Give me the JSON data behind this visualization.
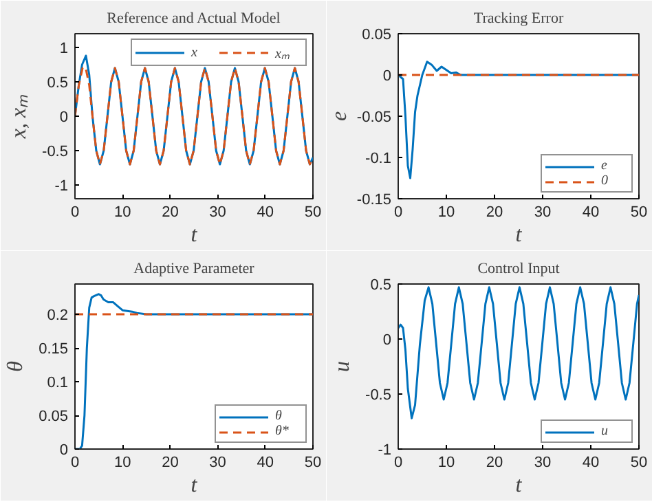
{
  "chart_data": [
    {
      "type": "line",
      "title": "Reference and Actual Model",
      "xlabel": "t",
      "ylabel": "x, xₘ",
      "xlim": [
        0,
        50
      ],
      "ylim": [
        -1.2,
        1.2
      ],
      "xticks": [
        0,
        10,
        20,
        30,
        40,
        50
      ],
      "yticks": [
        -1,
        -0.5,
        0,
        0.5,
        1
      ],
      "grid": false,
      "legend": "top right",
      "series": [
        {
          "name": "x",
          "color": "#0072bd",
          "line_style": "solid",
          "x": [
            0,
            0.8,
            1.5,
            2.3,
            3.0,
            3.68,
            4.47,
            5.25,
            6.04,
            6.83,
            7.61,
            8.4,
            9.19,
            9.98,
            10.76,
            11.55,
            12.34,
            13.13,
            13.91,
            14.7,
            15.49,
            16.28,
            17.06,
            17.85,
            18.64,
            19.43,
            20.21,
            21.0,
            21.79,
            22.58,
            23.36,
            24.15,
            24.94,
            25.73,
            26.51,
            27.3,
            28.09,
            28.88,
            29.66,
            30.45,
            31.24,
            32.03,
            32.81,
            33.6,
            34.39,
            35.18,
            35.96,
            36.75,
            37.54,
            38.33,
            39.11,
            39.9,
            40.69,
            41.48,
            42.26,
            43.05,
            43.84,
            44.63,
            45.41,
            46.2,
            46.99,
            47.78,
            48.56,
            49.35,
            50
          ],
          "values": [
            0,
            0.45,
            0.75,
            0.88,
            0.6,
            0,
            -0.5,
            -0.7,
            -0.5,
            0,
            0.5,
            0.7,
            0.5,
            0,
            -0.5,
            -0.7,
            -0.5,
            0,
            0.5,
            0.7,
            0.5,
            0,
            -0.5,
            -0.7,
            -0.5,
            0,
            0.5,
            0.7,
            0.5,
            0,
            -0.5,
            -0.7,
            -0.5,
            0,
            0.5,
            0.7,
            0.5,
            0,
            -0.5,
            -0.7,
            -0.5,
            0,
            0.5,
            0.7,
            0.5,
            0,
            -0.5,
            -0.7,
            -0.5,
            0,
            0.5,
            0.7,
            0.5,
            0,
            -0.5,
            -0.7,
            -0.5,
            0,
            0.5,
            0.7,
            0.5,
            0,
            -0.5,
            -0.7,
            -0.6
          ]
        },
        {
          "name": "xₘ",
          "color": "#d95319",
          "line_style": "dashed",
          "x": [
            0,
            0.8,
            1.6,
            2.2,
            3.0,
            3.68,
            4.47,
            5.25,
            6.04,
            6.83,
            7.61,
            8.4,
            9.19,
            9.98,
            10.76,
            11.55,
            12.34,
            13.13,
            13.91,
            14.7,
            15.49,
            16.28,
            17.06,
            17.85,
            18.64,
            19.43,
            20.21,
            21.0,
            21.79,
            22.58,
            23.36,
            24.15,
            24.94,
            25.73,
            26.51,
            27.3,
            28.09,
            28.88,
            29.66,
            30.45,
            31.24,
            32.03,
            32.81,
            33.6,
            34.39,
            35.18,
            35.96,
            36.75,
            37.54,
            38.33,
            39.11,
            39.9,
            40.69,
            41.48,
            42.26,
            43.05,
            43.84,
            44.63,
            45.41,
            46.2,
            46.99,
            47.78,
            48.56,
            49.35,
            50
          ],
          "values": [
            0,
            0.45,
            0.7,
            0.72,
            0.45,
            0,
            -0.5,
            -0.7,
            -0.5,
            0,
            0.5,
            0.7,
            0.5,
            0,
            -0.5,
            -0.7,
            -0.5,
            0,
            0.5,
            0.7,
            0.5,
            0,
            -0.5,
            -0.7,
            -0.5,
            0,
            0.5,
            0.7,
            0.5,
            0,
            -0.5,
            -0.7,
            -0.5,
            0,
            0.5,
            0.7,
            0.5,
            0,
            -0.5,
            -0.7,
            -0.5,
            0,
            0.5,
            0.7,
            0.5,
            0,
            -0.5,
            -0.7,
            -0.5,
            0,
            0.5,
            0.7,
            0.5,
            0,
            -0.5,
            -0.7,
            -0.5,
            0,
            0.5,
            0.7,
            0.5,
            0,
            -0.5,
            -0.7,
            -0.6
          ]
        }
      ]
    },
    {
      "type": "line",
      "title": "Tracking Error",
      "xlabel": "t",
      "ylabel": "e",
      "xlim": [
        0,
        50
      ],
      "ylim": [
        -0.15,
        0.05
      ],
      "xticks": [
        0,
        10,
        20,
        30,
        40,
        50
      ],
      "yticks": [
        -0.15,
        -0.1,
        -0.05,
        0,
        0.05
      ],
      "grid": false,
      "legend": "bottom right",
      "series": [
        {
          "name": "e",
          "color": "#0072bd",
          "line_style": "solid",
          "x": [
            0,
            1,
            1.5,
            2,
            2.5,
            3,
            3.5,
            4,
            5,
            6,
            7,
            8,
            9,
            10,
            11,
            12,
            13,
            15,
            20,
            50
          ],
          "values": [
            0,
            -0.005,
            -0.05,
            -0.11,
            -0.125,
            -0.09,
            -0.045,
            -0.025,
            0,
            0.016,
            0.012,
            0.005,
            0.01,
            0.006,
            0.002,
            0.003,
            0,
            0,
            0,
            0
          ]
        },
        {
          "name": "0",
          "color": "#d95319",
          "line_style": "dashed",
          "x": [
            0,
            50
          ],
          "values": [
            0,
            0
          ]
        }
      ]
    },
    {
      "type": "line",
      "title": "Adaptive Parameter",
      "xlabel": "t",
      "ylabel": "θ",
      "xlim": [
        0,
        50
      ],
      "ylim": [
        0,
        0.245
      ],
      "xticks": [
        0,
        10,
        20,
        30,
        40,
        50
      ],
      "yticks": [
        0,
        0.05,
        0.1,
        0.15,
        0.2
      ],
      "grid": false,
      "legend": "bottom right",
      "series": [
        {
          "name": "θ",
          "color": "#0072bd",
          "line_style": "solid",
          "x": [
            0,
            1,
            1.5,
            2,
            2.5,
            3,
            3.5,
            4,
            5,
            5.5,
            6,
            7,
            8,
            9,
            10,
            11,
            12,
            13,
            15,
            20,
            50
          ],
          "values": [
            0,
            0,
            0.005,
            0.05,
            0.15,
            0.21,
            0.225,
            0.227,
            0.23,
            0.228,
            0.222,
            0.218,
            0.218,
            0.212,
            0.206,
            0.205,
            0.204,
            0.202,
            0.2,
            0.2,
            0.2
          ]
        },
        {
          "name": "θ*",
          "color": "#d95319",
          "line_style": "dashed",
          "x": [
            0,
            50
          ],
          "values": [
            0.2,
            0.2
          ]
        }
      ]
    },
    {
      "type": "line",
      "title": "Control Input",
      "xlabel": "t",
      "ylabel": "u",
      "xlim": [
        0,
        50
      ],
      "ylim": [
        -1,
        0.5
      ],
      "xticks": [
        0,
        10,
        20,
        30,
        40,
        50
      ],
      "yticks": [
        -1,
        -0.5,
        0,
        0.5
      ],
      "grid": false,
      "legend": "bottom right",
      "series": [
        {
          "name": "u",
          "color": "#0072bd",
          "line_style": "solid",
          "x": [
            0,
            0.5,
            1,
            1.5,
            2,
            2.8,
            3.5,
            4.5,
            5.5,
            6.3,
            7.09,
            7.88,
            8.66,
            9.45,
            10.24,
            11.03,
            11.81,
            12.6,
            13.39,
            14.18,
            14.96,
            15.75,
            16.54,
            17.33,
            18.11,
            18.9,
            19.69,
            20.48,
            21.26,
            22.05,
            22.84,
            23.63,
            24.41,
            25.2,
            25.99,
            26.78,
            27.56,
            28.35,
            29.14,
            29.93,
            30.71,
            31.5,
            32.29,
            33.08,
            33.86,
            34.65,
            35.44,
            36.23,
            37.01,
            37.8,
            38.59,
            39.38,
            40.16,
            40.95,
            41.74,
            42.53,
            43.31,
            44.1,
            44.89,
            45.68,
            46.46,
            47.25,
            48.04,
            48.83,
            49.61,
            50
          ],
          "values": [
            0.1,
            0.13,
            0.1,
            -0.1,
            -0.45,
            -0.72,
            -0.6,
            -0.05,
            0.35,
            0.47,
            0.32,
            -0.04,
            -0.4,
            -0.55,
            -0.4,
            -0.04,
            0.32,
            0.47,
            0.32,
            -0.04,
            -0.4,
            -0.55,
            -0.4,
            -0.04,
            0.32,
            0.47,
            0.32,
            -0.04,
            -0.4,
            -0.55,
            -0.4,
            -0.04,
            0.32,
            0.47,
            0.32,
            -0.04,
            -0.4,
            -0.55,
            -0.4,
            -0.04,
            0.32,
            0.47,
            0.32,
            -0.04,
            -0.4,
            -0.55,
            -0.4,
            -0.04,
            0.32,
            0.47,
            0.32,
            -0.04,
            -0.4,
            -0.55,
            -0.4,
            -0.04,
            0.32,
            0.47,
            0.32,
            -0.04,
            -0.4,
            -0.55,
            -0.4,
            -0.04,
            0.32,
            0.4
          ]
        }
      ]
    }
  ]
}
